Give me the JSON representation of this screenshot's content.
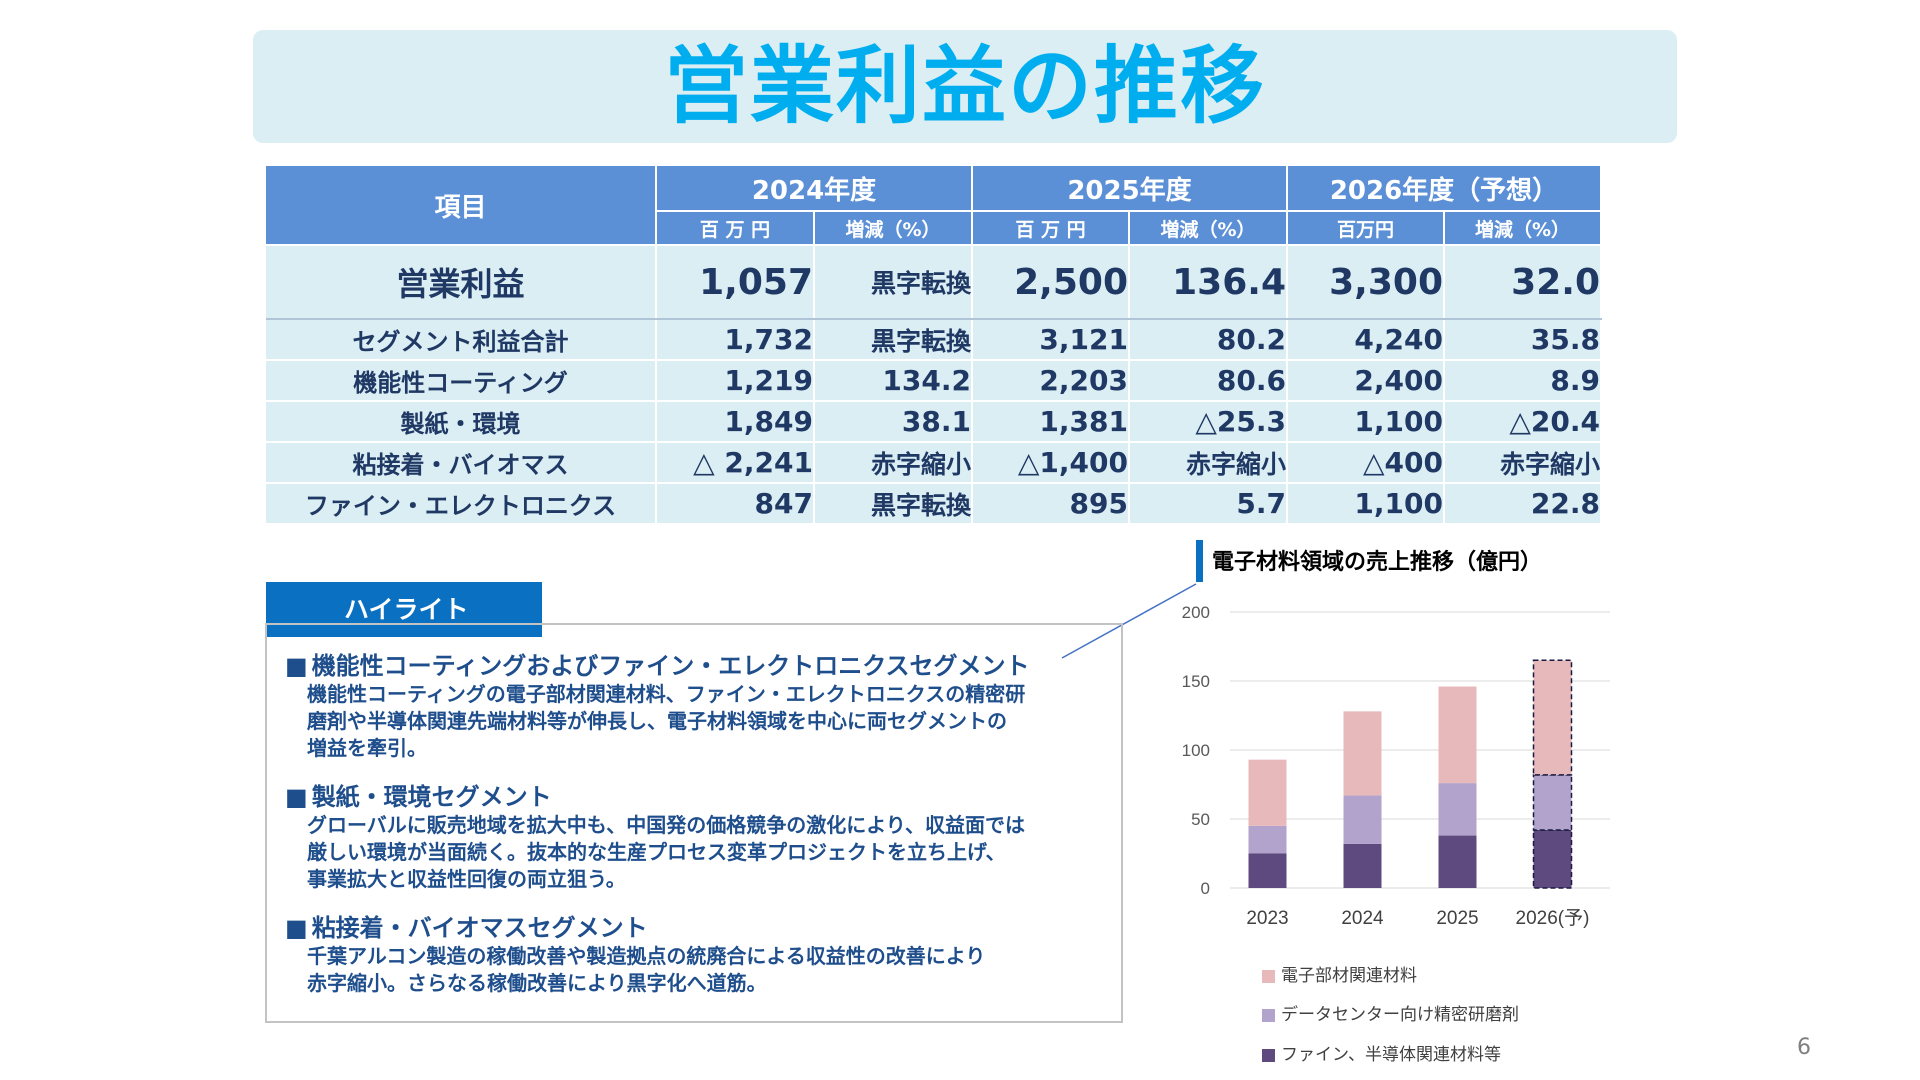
{
  "title": "営業利益の推移",
  "table": {
    "item_header": "項目",
    "years": [
      "2024年度",
      "2025年度",
      "2026年度（予想）"
    ],
    "subheaders": [
      "百 万 円",
      "増減（%）",
      "百 万 円",
      "増減（%）",
      "百万円",
      "増減（%）"
    ],
    "rows": [
      {
        "label": "営業利益",
        "cells": [
          "1,057",
          "黒字転換",
          "2,500",
          "136.4",
          "3,300",
          "32.0"
        ]
      },
      {
        "label": "セグメント利益合計",
        "cells": [
          "1,732",
          "黒字転換",
          "3,121",
          "80.2",
          "4,240",
          "35.8"
        ]
      },
      {
        "label": "機能性コーティング",
        "cells": [
          "1,219",
          "134.2",
          "2,203",
          "80.6",
          "2,400",
          "8.9"
        ]
      },
      {
        "label": "製紙・環境",
        "cells": [
          "1,849",
          "38.1",
          "1,381",
          "△25.3",
          "1,100",
          "△20.4"
        ]
      },
      {
        "label": "粘接着・バイオマス",
        "cells": [
          "△ 2,241",
          "赤字縮小",
          "△1,400",
          "赤字縮小",
          "△400",
          "赤字縮小"
        ]
      },
      {
        "label": "ファイン・エレクトロニクス",
        "cells": [
          "847",
          "黒字転換",
          "895",
          "5.7",
          "1,100",
          "22.8"
        ]
      }
    ]
  },
  "highlight": {
    "tab_label": "ハイライト",
    "items": [
      {
        "heading": "機能性コーティングおよびファイン・エレクトロニクスセグメント",
        "lines": [
          "機能性コーティングの電子部材関連材料、ファイン・エレクトロニクスの精密研",
          "磨剤や半導体関連先端材料等が伸長し、電子材料領域を中心に両セグメントの",
          "増益を牽引。"
        ]
      },
      {
        "heading": "製紙・環境セグメント",
        "lines": [
          "グローバルに販売地域を拡大中も、中国発の価格競争の激化により、収益面では",
          "厳しい環境が当面続く。抜本的な生産プロセス変革プロジェクトを立ち上げ、",
          "事業拡大と収益性回復の両立狙う。"
        ]
      },
      {
        "heading": "粘接着・バイオマスセグメント",
        "lines": [
          "千葉アルコン製造の稼働改善や製造拠点の統廃合による収益性の改善により",
          "赤字縮小。さらなる稼働改善により黒字化へ道筋。"
        ]
      }
    ],
    "bullet": "■"
  },
  "chart_data": {
    "type": "bar",
    "stacked": true,
    "title": "電子材料領域の売上推移（億円）",
    "categories": [
      "2023",
      "2024",
      "2025",
      "2026(予)"
    ],
    "series": [
      {
        "name": "ファイン、半導体関連材料等",
        "values": [
          25,
          32,
          38,
          42
        ],
        "color": "#5e4a7e"
      },
      {
        "name": "データセンター向け精密研磨剤",
        "values": [
          20,
          35,
          38,
          40
        ],
        "color": "#b1a3cc"
      },
      {
        "name": "電子部材関連材料",
        "values": [
          48,
          61,
          70,
          83
        ],
        "color": "#e8b9bb"
      }
    ],
    "ylim": [
      0,
      200
    ],
    "yticks": [
      0,
      50,
      100,
      150,
      200
    ],
    "grid": true,
    "forecast_category": "2026(予)",
    "legend_position": "bottom"
  },
  "page_number": "6"
}
